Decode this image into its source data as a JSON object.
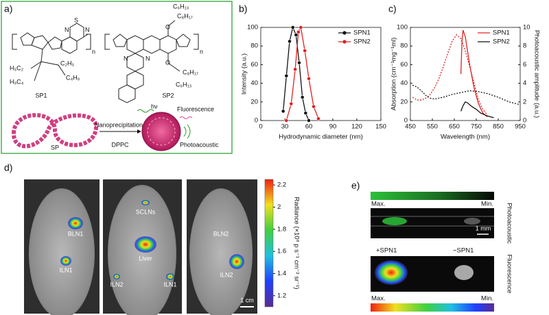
{
  "panel_labels": [
    "a)",
    "b)",
    "c)",
    "d)",
    "e)"
  ],
  "panel_a": {
    "sp1_label": "SP1",
    "sp2_label": "SP2",
    "sp1_groups": [
      "H₅C₂",
      "H₉C₄",
      "C₂H₅",
      "C₄H₉"
    ],
    "sp2_groups": [
      "C₆H₁₃",
      "C₈H₁₇",
      "O",
      "C₈H₁₇",
      "O",
      "C₆H₁₃"
    ],
    "atoms": [
      "S",
      "N",
      "N",
      "n",
      "n",
      "N",
      "N"
    ],
    "sp_label": "SP",
    "step": "Nanoprecipitation",
    "dppc": "DPPC",
    "hv": "hν",
    "fluorescence": "Fluorescence",
    "photoacoustic": "Photoacoustic"
  },
  "chart_data": [
    {
      "type": "line",
      "xlabel": "Hydrodynamic diameter (nm)",
      "ylabel": "Intensity (a.u.)",
      "xlim": [
        0,
        150
      ],
      "xticks": [
        0,
        30,
        60,
        90,
        120,
        150
      ],
      "ylim": [
        0,
        100
      ],
      "yticks": [
        0,
        20,
        40,
        60,
        80,
        100
      ],
      "legend": "upper right",
      "series": [
        {
          "name": "SPN1",
          "color": "#111111",
          "marker": "o",
          "x": [
            28,
            32,
            36,
            40,
            44,
            48,
            52,
            56,
            60
          ],
          "values": [
            10,
            48,
            85,
            100,
            92,
            62,
            25,
            8,
            0
          ]
        },
        {
          "name": "SPN2",
          "color": "#e02020",
          "marker": "o",
          "x": [
            32,
            38,
            43,
            47,
            50,
            55,
            60,
            66,
            72
          ],
          "values": [
            0,
            18,
            55,
            95,
            100,
            75,
            45,
            15,
            2
          ]
        }
      ]
    },
    {
      "type": "line",
      "xlabel": "Wavelength (nm)",
      "ylabel": "Absorption (cm⁻¹mg⁻¹ml)",
      "y2label": "Photoacoustic amplitude (a.u.)",
      "xlim": [
        450,
        950
      ],
      "xticks": [
        450,
        550,
        650,
        750,
        850,
        950
      ],
      "ylim": [
        0,
        100
      ],
      "yticks": [
        0,
        20,
        40,
        60,
        80,
        100
      ],
      "y2lim": [
        0,
        10
      ],
      "y2ticks": [
        0,
        2,
        4,
        6,
        8,
        10
      ],
      "legend": "upper right",
      "series": [
        {
          "color": "#e02020",
          "dash": "dotted",
          "x": [
            460,
            480,
            500,
            520,
            540,
            560,
            580,
            600,
            620,
            640,
            660,
            680,
            700,
            720,
            740,
            760,
            780,
            800
          ],
          "values": [
            25,
            22,
            22,
            24,
            28,
            35,
            45,
            58,
            72,
            85,
            92,
            88,
            75,
            58,
            40,
            22,
            12,
            6
          ]
        },
        {
          "color": "#111111",
          "dash": "dotted",
          "x": [
            460,
            480,
            500,
            520,
            540,
            560,
            600,
            640,
            680,
            720,
            760,
            800,
            850,
            900,
            950
          ],
          "values": [
            38,
            36,
            32,
            27,
            24,
            23,
            25,
            28,
            30,
            32,
            31,
            29,
            25,
            20,
            17
          ]
        },
        {
          "name": "SPN1",
          "color": "#e02020",
          "axis": "y2",
          "x": [
            680,
            685,
            690,
            700,
            710,
            720,
            740,
            760,
            780,
            800
          ],
          "values": [
            5.0,
            8.5,
            9.7,
            9.0,
            7.5,
            6.0,
            3.5,
            1.8,
            0.8,
            0.4
          ]
        },
        {
          "name": "SPN2",
          "color": "#111111",
          "axis": "y2",
          "x": [
            680,
            690,
            700,
            710,
            730,
            750,
            770,
            800,
            830
          ],
          "values": [
            1.0,
            1.6,
            2.0,
            1.9,
            1.5,
            1.2,
            0.8,
            0.5,
            0.3
          ]
        }
      ]
    }
  ],
  "panel_d": {
    "labels": [
      "BLN1",
      "ILN1",
      "SCLNs",
      "Liver",
      "ILN2",
      "ILN1",
      "BLN2",
      "ILN2"
    ],
    "scale_bar": "1 cm",
    "colorbar": {
      "label": "Radiance (×10⁸ p s⁻¹ cm⁻² sr⁻¹)",
      "lim": [
        1.1,
        2.25
      ],
      "ticks": [
        2.2,
        2.0,
        1.8,
        1.6,
        1.4,
        1.2
      ]
    }
  },
  "panel_e": {
    "pa_max": "Max.",
    "pa_min": "Min.",
    "pa_title": "Photoacoustic",
    "scale_bar": "1 mm",
    "plus": "+SPN1",
    "minus": "−SPN1",
    "fl_title": "Fluorescence",
    "fl_max": "Max.",
    "fl_min": "Min."
  }
}
